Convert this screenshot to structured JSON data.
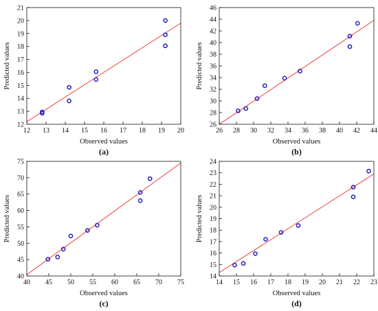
{
  "chart_data": [
    {
      "type": "scatter",
      "panel_label": "(a)",
      "xlabel": "Observed values",
      "ylabel": "Predicted values",
      "xlim": [
        12,
        20
      ],
      "ylim": [
        12,
        21
      ],
      "xticks": [
        12,
        13,
        14,
        15,
        16,
        17,
        18,
        19,
        20
      ],
      "yticks": [
        12,
        13,
        14,
        15,
        16,
        17,
        18,
        19,
        20,
        21
      ],
      "points": [
        {
          "x": 12.8,
          "y": 12.85
        },
        {
          "x": 12.8,
          "y": 12.95
        },
        {
          "x": 14.2,
          "y": 13.8
        },
        {
          "x": 14.2,
          "y": 14.85
        },
        {
          "x": 15.6,
          "y": 15.45
        },
        {
          "x": 15.6,
          "y": 16.05
        },
        {
          "x": 19.2,
          "y": 18.05
        },
        {
          "x": 19.2,
          "y": 18.9
        },
        {
          "x": 19.2,
          "y": 20.0
        }
      ],
      "fit_line": [
        [
          12,
          12.2
        ],
        [
          20,
          19.8
        ]
      ],
      "grid": false
    },
    {
      "type": "scatter",
      "panel_label": "(b)",
      "xlabel": "Observed values",
      "ylabel": "Predicted values",
      "xlim": [
        26,
        44
      ],
      "ylim": [
        26,
        46
      ],
      "xticks": [
        26,
        28,
        30,
        32,
        34,
        36,
        38,
        40,
        42,
        44
      ],
      "yticks": [
        26,
        28,
        30,
        32,
        34,
        36,
        38,
        40,
        42,
        44,
        46
      ],
      "points": [
        {
          "x": 28.2,
          "y": 28.3
        },
        {
          "x": 29.1,
          "y": 28.7
        },
        {
          "x": 30.4,
          "y": 30.4
        },
        {
          "x": 31.3,
          "y": 32.6
        },
        {
          "x": 33.6,
          "y": 33.9
        },
        {
          "x": 35.4,
          "y": 35.1
        },
        {
          "x": 41.2,
          "y": 39.3
        },
        {
          "x": 41.2,
          "y": 41.1
        },
        {
          "x": 42.1,
          "y": 43.3
        }
      ],
      "fit_line": [
        [
          26,
          26.0
        ],
        [
          44,
          43.8
        ]
      ],
      "grid": false
    },
    {
      "type": "scatter",
      "panel_label": "(c)",
      "xlabel": "Observed values",
      "ylabel": "Predicted values",
      "xlim": [
        40,
        75
      ],
      "ylim": [
        40,
        75
      ],
      "xticks": [
        40,
        45,
        50,
        55,
        60,
        65,
        70,
        75
      ],
      "yticks": [
        40,
        45,
        50,
        55,
        60,
        65,
        70,
        75
      ],
      "points": [
        {
          "x": 44.8,
          "y": 45.1
        },
        {
          "x": 47.0,
          "y": 45.8
        },
        {
          "x": 48.3,
          "y": 48.2
        },
        {
          "x": 50.0,
          "y": 52.2
        },
        {
          "x": 53.8,
          "y": 53.9
        },
        {
          "x": 56.0,
          "y": 55.5
        },
        {
          "x": 65.8,
          "y": 63.0
        },
        {
          "x": 65.8,
          "y": 65.5
        },
        {
          "x": 68.0,
          "y": 69.7
        }
      ],
      "fit_line": [
        [
          40,
          40.4
        ],
        [
          75,
          74.5
        ]
      ],
      "grid": false
    },
    {
      "type": "scatter",
      "panel_label": "(d)",
      "xlabel": "Observed values",
      "ylabel": "Predicted values",
      "xlim": [
        14,
        23
      ],
      "ylim": [
        14,
        24
      ],
      "xticks": [
        14,
        15,
        16,
        17,
        18,
        19,
        20,
        21,
        22,
        23
      ],
      "yticks": [
        14,
        15,
        16,
        17,
        18,
        19,
        20,
        21,
        22,
        23,
        24
      ],
      "points": [
        {
          "x": 14.9,
          "y": 14.95
        },
        {
          "x": 15.4,
          "y": 15.1
        },
        {
          "x": 16.1,
          "y": 15.95
        },
        {
          "x": 16.7,
          "y": 17.2
        },
        {
          "x": 17.6,
          "y": 17.8
        },
        {
          "x": 18.6,
          "y": 18.4
        },
        {
          "x": 21.8,
          "y": 20.9
        },
        {
          "x": 21.8,
          "y": 21.75
        },
        {
          "x": 22.7,
          "y": 23.15
        }
      ],
      "fit_line": [
        [
          14,
          14.3
        ],
        [
          23,
          22.9
        ]
      ],
      "grid": false
    }
  ],
  "colors": {
    "marker": "#1f1fbf",
    "fit_line": "#e8403a",
    "axis": "#111111"
  }
}
